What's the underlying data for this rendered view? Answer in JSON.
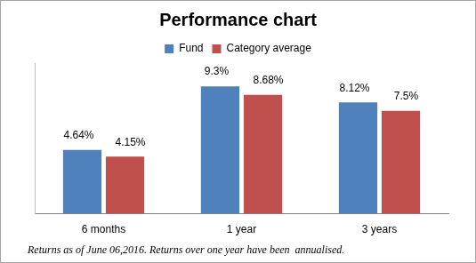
{
  "chart_data": {
    "type": "bar",
    "title": "Performance chart",
    "categories": [
      "6 months",
      "1 year",
      "3 years"
    ],
    "series": [
      {
        "name": "Fund",
        "color": "#4f81bd",
        "values": [
          4.64,
          9.3,
          8.12
        ],
        "value_labels": [
          "4.64%",
          "9.3%",
          "8.12%"
        ]
      },
      {
        "name": "Category average",
        "color": "#c0504d",
        "values": [
          4.15,
          8.68,
          7.5
        ],
        "value_labels": [
          "4.15%",
          "8.68%",
          "7.5%"
        ]
      }
    ],
    "ylim": [
      0,
      11
    ],
    "yticks": [],
    "grid": false,
    "legend": "top",
    "data_labels": true,
    "tick_labels": "x",
    "annotations": [
      "Returns as of June 06,2016. Returns over one year have been  annualised."
    ]
  }
}
